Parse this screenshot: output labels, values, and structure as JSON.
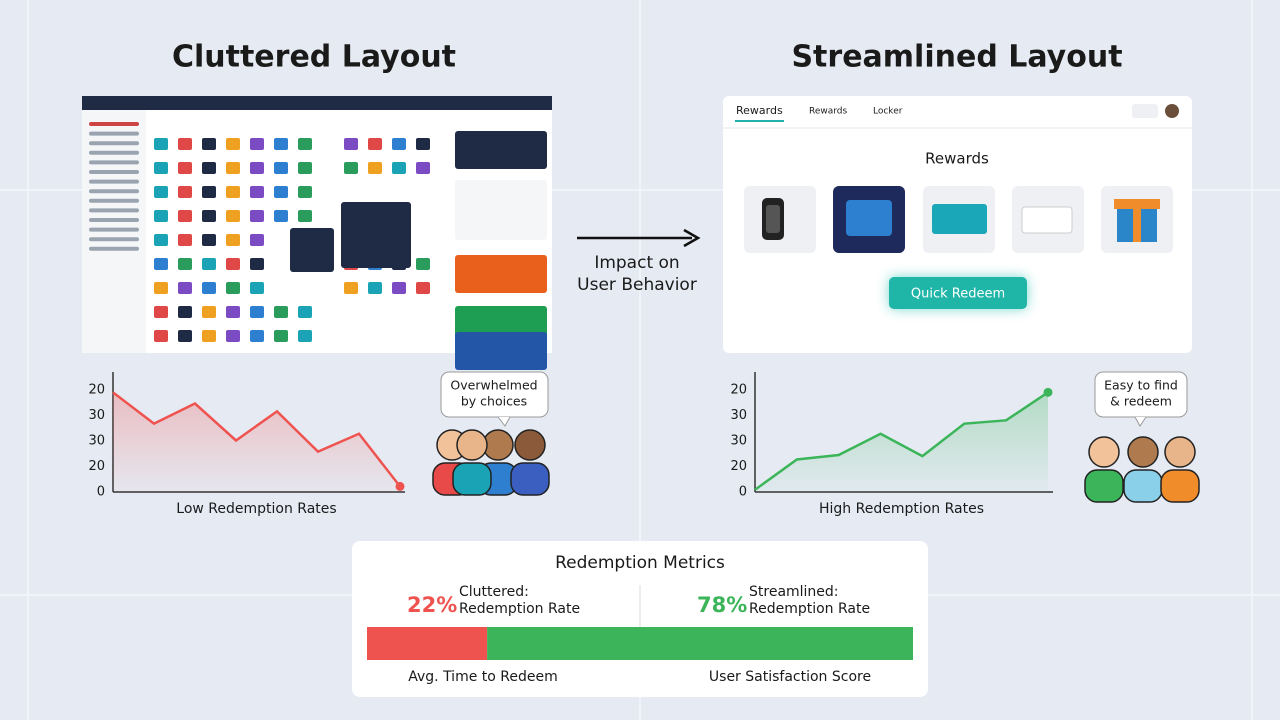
{
  "left": {
    "title": "Cluttered Layout",
    "chart": {
      "type": "line",
      "y_labels": [
        "20",
        "30",
        "30",
        "20",
        "0"
      ],
      "values": [
        89,
        61,
        79,
        46,
        72,
        36,
        52,
        5
      ],
      "ylim": [
        0,
        100
      ],
      "color": "#ef5350",
      "caption": "Low Redemption Rates"
    },
    "bubble": [
      "Overwhelmed",
      "by choices"
    ]
  },
  "right": {
    "title": "Streamlined Layout",
    "mockup": {
      "nav": [
        "Rewards",
        "Rewards",
        "Locker"
      ],
      "heading": "Rewards",
      "button": "Quick Redeem"
    },
    "chart": {
      "type": "line",
      "y_labels": [
        "20",
        "30",
        "30",
        "20",
        "0"
      ],
      "values": [
        2,
        29,
        33,
        52,
        32,
        61,
        64,
        89
      ],
      "ylim": [
        0,
        100
      ],
      "color": "#3cb55a",
      "caption": "High Redemption Rates"
    },
    "bubble": [
      "Easy to find",
      "& redeem"
    ]
  },
  "arrow_label": [
    "Impact on",
    "User Behavior"
  ],
  "metrics": {
    "title": "Redemption Metrics",
    "items": [
      {
        "value": 22,
        "value_label": "22%",
        "label": [
          "Cluttered:",
          "Redemption Rate"
        ],
        "color": "#ef5350",
        "footer": "Avg. Time to Redeem"
      },
      {
        "value": 78,
        "value_label": "78%",
        "label": [
          "Streamlined:",
          "Redemption Rate"
        ],
        "color": "#3cb55a",
        "footer": "User Satisfaction Score"
      }
    ]
  }
}
